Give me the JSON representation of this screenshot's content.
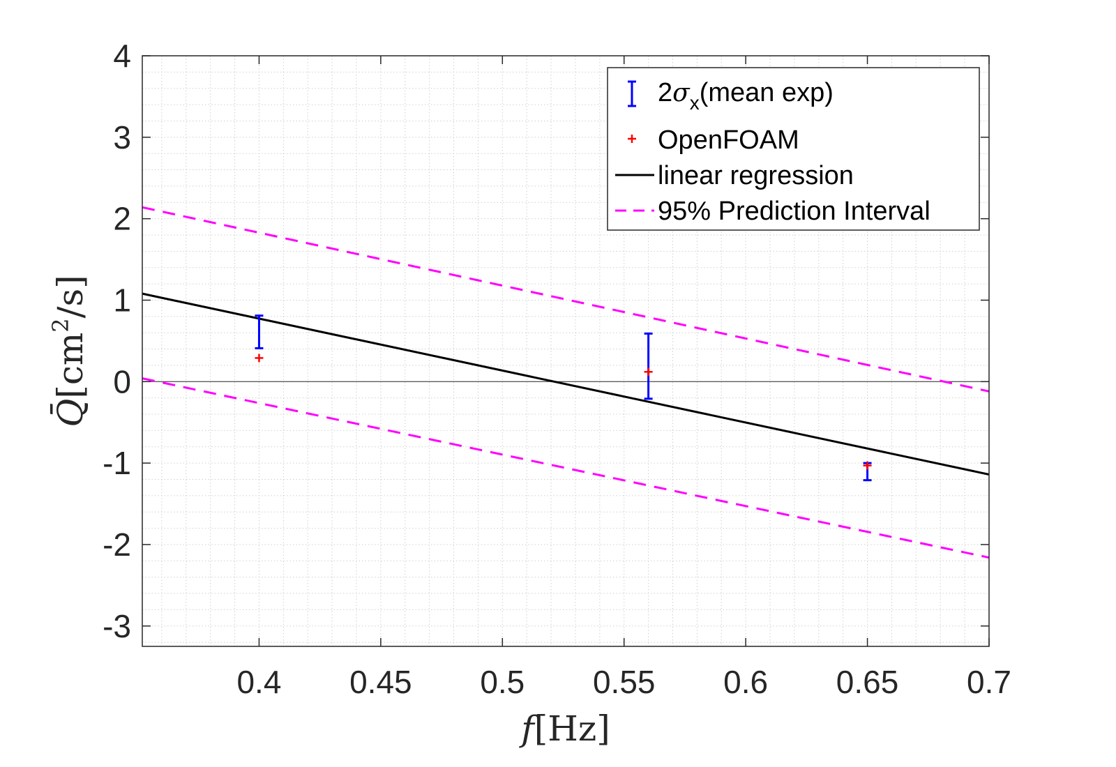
{
  "chart_data": {
    "type": "scatter",
    "title": "",
    "xlabel": {
      "var": "f",
      "unit": "[Hz]"
    },
    "ylabel": {
      "var": "Q̄",
      "unit_open": "[cm",
      "unit_sup": "2",
      "unit_close": "/s]"
    },
    "xlim": [
      0.352,
      0.7
    ],
    "ylim": [
      -3.25,
      4
    ],
    "x_ticks": [
      0.4,
      0.45,
      0.5,
      0.55,
      0.6,
      0.65,
      0.7
    ],
    "x_tick_labels": [
      "0.4",
      "0.45",
      "0.5",
      "0.55",
      "0.6",
      "0.65",
      "0.7"
    ],
    "y_ticks": [
      -3,
      -2,
      -1,
      0,
      1,
      2,
      3,
      4
    ],
    "y_tick_labels": [
      "-3",
      "-2",
      "-1",
      "0",
      "1",
      "2",
      "3",
      "4"
    ],
    "grid": "minor dotted",
    "zero_line": true,
    "legend_position": "top-right",
    "series": [
      {
        "name": "2σx(mean exp)",
        "legend": {
          "prefix": "2",
          "greek": "σ",
          "subscript": "x",
          "suffix": "(mean exp)"
        },
        "kind": "errorbar",
        "color": "#0000ff",
        "points": [
          {
            "x": 0.4,
            "low": 0.41,
            "high": 0.81
          },
          {
            "x": 0.56,
            "low": -0.21,
            "high": 0.59
          },
          {
            "x": 0.65,
            "low": -1.21,
            "high": -1.0
          }
        ]
      },
      {
        "name": "OpenFOAM",
        "kind": "marker",
        "marker": "+",
        "color": "#ff0000",
        "points": [
          {
            "x": 0.4,
            "y": 0.29
          },
          {
            "x": 0.56,
            "y": 0.12
          },
          {
            "x": 0.65,
            "y": -1.03
          }
        ]
      },
      {
        "name": "linear regression",
        "kind": "line",
        "color": "#000000",
        "points": [
          {
            "x": 0.352,
            "y": 1.08
          },
          {
            "x": 0.7,
            "y": -1.14
          }
        ]
      },
      {
        "name": "95% Prediction Interval",
        "kind": "dashed-lines",
        "color": "#ff00ff",
        "lines": [
          [
            {
              "x": 0.352,
              "y": 2.14
            },
            {
              "x": 0.7,
              "y": -0.12
            }
          ],
          [
            {
              "x": 0.352,
              "y": 0.04
            },
            {
              "x": 0.7,
              "y": -2.16
            }
          ]
        ]
      }
    ]
  }
}
